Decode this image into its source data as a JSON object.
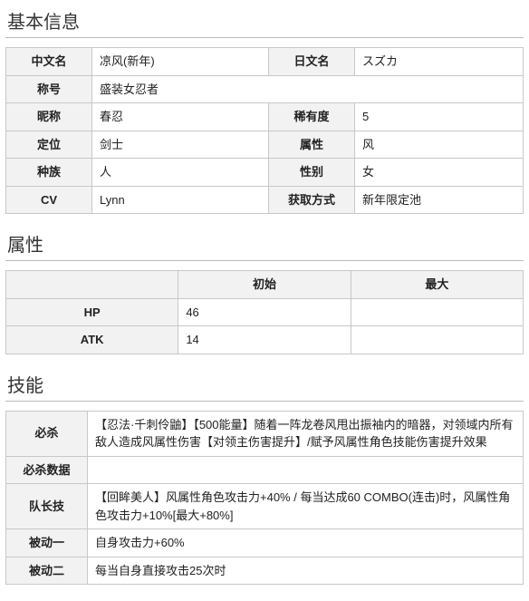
{
  "sections": {
    "basic": "基本信息",
    "attrs": "属性",
    "skills": "技能"
  },
  "basic": {
    "labels": {
      "cnName": "中文名",
      "jpName": "日文名",
      "title": "称号",
      "nickname": "昵称",
      "rarity": "稀有度",
      "role": "定位",
      "element": "属性",
      "race": "种族",
      "gender": "性别",
      "cv": "CV",
      "obtain": "获取方式"
    },
    "values": {
      "cnName": "凉风(新年)",
      "jpName": "スズカ",
      "title": "盛装女忍者",
      "nickname": "春忍",
      "rarity": "5",
      "role": "剑士",
      "element": "风",
      "race": "人",
      "gender": "女",
      "cv": "Lynn",
      "obtain": "新年限定池"
    }
  },
  "attrs": {
    "headers": {
      "initial": "初始",
      "max": "最大"
    },
    "rows": {
      "hp": {
        "label": "HP",
        "initial": "46",
        "max": ""
      },
      "atk": {
        "label": "ATK",
        "initial": "14",
        "max": ""
      }
    }
  },
  "skills": {
    "rows": {
      "ultimate": {
        "label": "必杀",
        "value": "【忍法·千刺伶鼬】【500能量】随着一阵龙卷风甩出振袖内的暗器，对领域内所有敌人造成风属性伤害【对领主伤害提升】/赋予风属性角色技能伤害提升效果"
      },
      "ultData": {
        "label": "必杀数据",
        "value": ""
      },
      "leader": {
        "label": "队长技",
        "value": "【回眸美人】风属性角色攻击力+40% / 每当达成60 COMBO(连击)时，风属性角色攻击力+10%[最大+80%]"
      },
      "passive1": {
        "label": "被动一",
        "value": "自身攻击力+60%"
      },
      "passive2": {
        "label": "被动二",
        "value": "每当自身直接攻击25次时"
      }
    }
  }
}
